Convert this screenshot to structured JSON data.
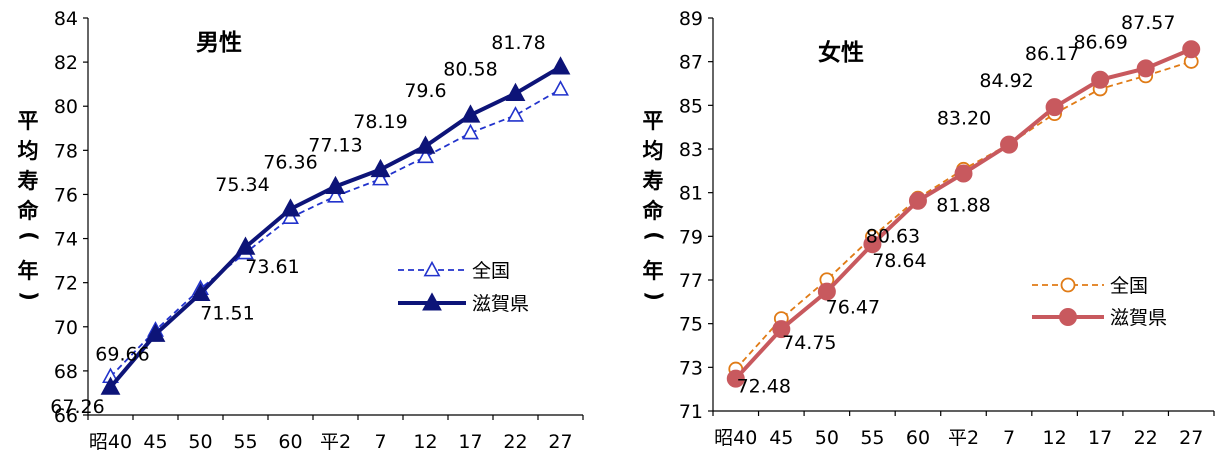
{
  "chart_data": [
    {
      "type": "line",
      "title": "男性",
      "ylabel": "平均寿命(年)",
      "categories": [
        "昭40",
        "45",
        "50",
        "55",
        "60",
        "平2",
        "7",
        "12",
        "17",
        "22",
        "27"
      ],
      "ylim": [
        66,
        84
      ],
      "yticks": [
        66,
        68,
        70,
        72,
        74,
        76,
        78,
        80,
        82,
        84
      ],
      "series": [
        {
          "name": "全国",
          "values": [
            67.74,
            69.84,
            71.73,
            73.35,
            74.95,
            75.92,
            76.7,
            77.71,
            78.79,
            79.59,
            80.77
          ],
          "color": "#2233cc",
          "style": "dashed",
          "marker": "triangle-open"
        },
        {
          "name": "滋賀県",
          "values": [
            67.26,
            69.66,
            71.51,
            73.61,
            75.34,
            76.36,
            77.13,
            78.19,
            79.6,
            80.58,
            81.78
          ],
          "color": "#0d1478",
          "style": "solid",
          "marker": "triangle-filled"
        }
      ],
      "data_labels": [
        "67.26",
        "69.66",
        "71.51",
        "73.61",
        "75.34",
        "76.36",
        "77.13",
        "78.19",
        "79.6",
        "80.58",
        "81.78"
      ],
      "legend": "right"
    },
    {
      "type": "line",
      "title": "女性",
      "ylabel": "平均寿命(年)",
      "categories": [
        "昭40",
        "45",
        "50",
        "55",
        "60",
        "平2",
        "7",
        "12",
        "17",
        "22",
        "27"
      ],
      "ylim": [
        71,
        89
      ],
      "yticks": [
        71,
        73,
        75,
        77,
        79,
        81,
        83,
        85,
        87,
        89
      ],
      "series": [
        {
          "name": "全国",
          "values": [
            72.92,
            75.23,
            77.01,
            78.98,
            80.75,
            82.07,
            83.22,
            84.62,
            85.75,
            86.35,
            87.01
          ],
          "color": "#e07b16",
          "style": "dashed",
          "marker": "circle-open"
        },
        {
          "name": "滋賀県",
          "values": [
            72.48,
            74.75,
            76.47,
            78.64,
            80.63,
            81.88,
            83.2,
            84.92,
            86.17,
            86.69,
            87.57
          ],
          "color": "#c8595e",
          "style": "solid",
          "marker": "circle-filled"
        }
      ],
      "data_labels": [
        "72.48",
        "74.75",
        "76.47",
        "78.64",
        "80.63",
        "81.88",
        "83.20",
        "84.92",
        "86.17",
        "86.69",
        "87.57"
      ],
      "legend": "right"
    }
  ]
}
